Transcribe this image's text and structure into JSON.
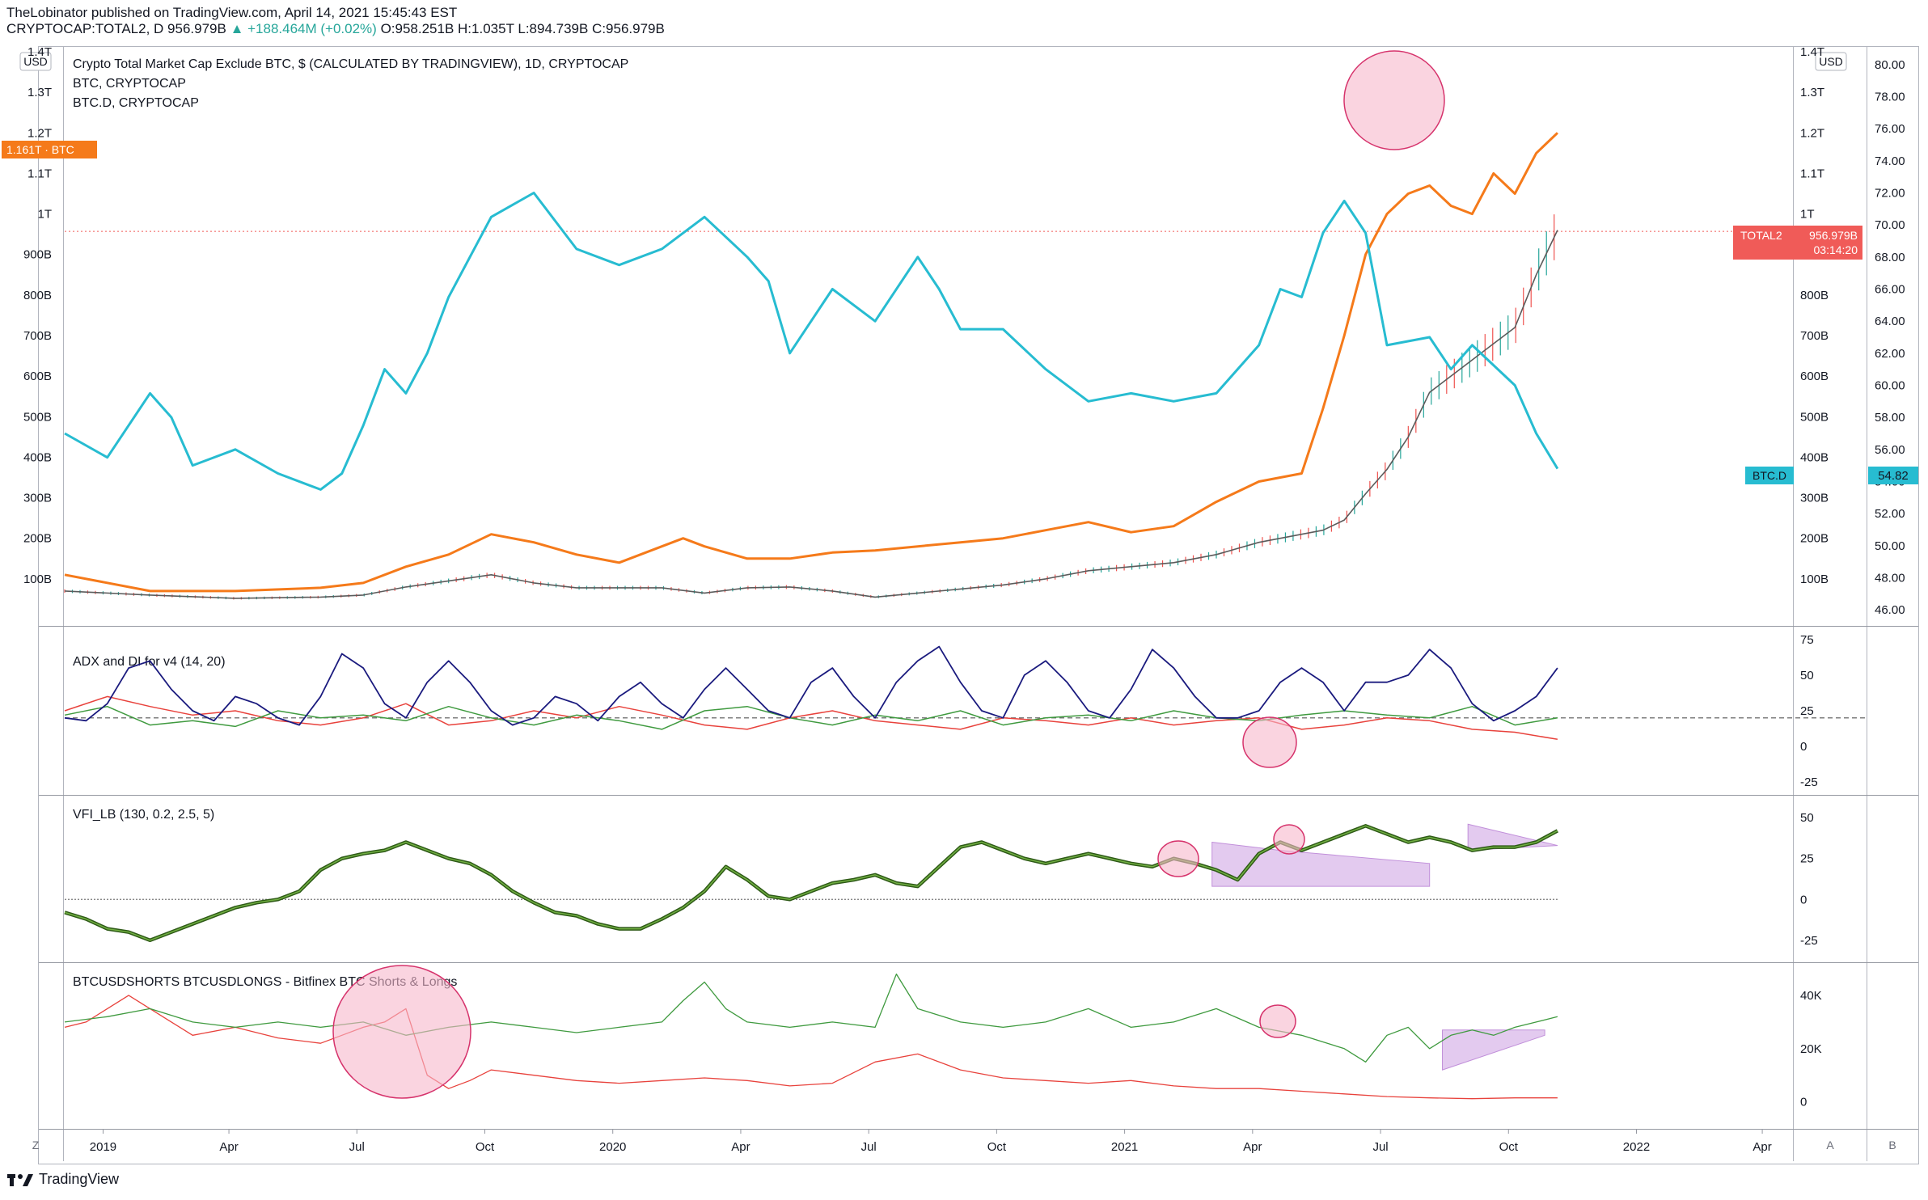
{
  "header": {
    "publish_line": "TheLobinator published on TradingView.com, April 14, 2021 15:45:43 EST",
    "symbol": "CRYPTOCAP:TOTAL2, D",
    "last": "956.979B",
    "change": "▲ +188.464M (+0.02%)",
    "ohlc": "O:958.251B H:1.035T L:894.739B C:956.979B"
  },
  "footer": {
    "brand": "TradingView"
  },
  "colors": {
    "total2": "#5b5b5b",
    "btc": "#f57a1a",
    "btcd": "#27bcd1",
    "adx": "#1a1a7e",
    "di_plus": "#3f9a3f",
    "di_minus": "#e8423c",
    "vfi": "#4b8a2b",
    "shorts": "#e8423c",
    "longs": "#3f9a3f",
    "highlight": "#f7b8cc",
    "triangle": "#d9b8ea"
  },
  "chart_data": [
    {
      "type": "line",
      "title": "Crypto Total Market Cap Exclude BTC, $ (CALCULATED BY TRADINGVIEW), 1D, CRYPTOCAP",
      "legend": [
        "BTC, CRYPTOCAP",
        "BTC.D, CRYPTOCAP"
      ],
      "currency": "USD",
      "yticks_left": [
        "1.4T",
        "1.3T",
        "1.2T",
        "1.1T",
        "1T",
        "900B",
        "800B",
        "700B",
        "600B",
        "500B",
        "400B",
        "300B",
        "200B",
        "100B"
      ],
      "yticks_right_total2": [
        "1.4T",
        "1.3T",
        "1.2T",
        "1.1T",
        "1T",
        "900B",
        "800B",
        "700B",
        "600B",
        "500B",
        "400B",
        "300B",
        "200B",
        "100B"
      ],
      "yticks_btcd": [
        "80.00",
        "78.00",
        "76.00",
        "74.00",
        "72.00",
        "70.00",
        "68.00",
        "66.00",
        "64.00",
        "62.00",
        "60.00",
        "58.00",
        "56.00",
        "54.00",
        "52.00",
        "50.00",
        "48.00",
        "46.00"
      ],
      "ylim_total2": [
        0,
        1400
      ],
      "ylim_btcd": [
        45.4,
        80.8
      ],
      "badges": {
        "btc": "1.161T · BTC",
        "total2_name": "TOTAL2",
        "total2_value": "956.979B",
        "total2_timer": "03:14:20",
        "btcd_name": "BTC.D",
        "btcd_value": "54.82"
      },
      "series": [
        {
          "name": "TOTAL2",
          "x": [
            0.0,
            2.0,
            4.0,
            6.0,
            7.0,
            8.0,
            9.0,
            10.0,
            11.0,
            12.0,
            13.0,
            14.0,
            15.0,
            16.0,
            17.0,
            18.0,
            19.0,
            20.0,
            21.0,
            22.0,
            23.0,
            24.0,
            25.0,
            26.0,
            27.0,
            28.0,
            29.0,
            29.5,
            30.0,
            30.5,
            31.0,
            31.5,
            32.0,
            32.5,
            33.0,
            33.5,
            34.0,
            34.5,
            35.0
          ],
          "values": [
            70,
            60,
            52,
            55,
            60,
            80,
            95,
            110,
            90,
            78,
            78,
            78,
            65,
            78,
            80,
            70,
            55,
            65,
            75,
            85,
            100,
            120,
            130,
            140,
            160,
            190,
            210,
            220,
            245,
            310,
            370,
            450,
            560,
            600,
            640,
            680,
            720,
            850,
            960
          ]
        },
        {
          "name": "BTC",
          "x": [
            0.0,
            2.0,
            4.0,
            6.0,
            7.0,
            8.0,
            9.0,
            10.0,
            11.0,
            12.0,
            13.0,
            14.0,
            14.5,
            15.0,
            16.0,
            17.0,
            18.0,
            19.0,
            20.0,
            21.0,
            22.0,
            23.0,
            24.0,
            25.0,
            26.0,
            27.0,
            28.0,
            29.0,
            29.5,
            30.0,
            30.5,
            31.0,
            31.5,
            32.0,
            32.5,
            33.0,
            33.5,
            34.0,
            34.5,
            35.0
          ],
          "values": [
            110,
            70,
            70,
            78,
            90,
            130,
            160,
            210,
            190,
            160,
            140,
            180,
            200,
            180,
            150,
            150,
            165,
            170,
            180,
            190,
            200,
            220,
            240,
            215,
            230,
            290,
            340,
            360,
            520,
            700,
            900,
            1000,
            1050,
            1070,
            1020,
            1000,
            1100,
            1050,
            1150,
            1200
          ]
        },
        {
          "name": "BTC.D",
          "x": [
            0.0,
            1.0,
            1.5,
            2.0,
            2.5,
            3.0,
            4.0,
            5.0,
            6.0,
            6.5,
            7.0,
            7.5,
            8.0,
            8.5,
            9.0,
            10.0,
            11.0,
            12.0,
            13.0,
            14.0,
            15.0,
            16.0,
            16.5,
            17.0,
            18.0,
            19.0,
            20.0,
            20.5,
            21.0,
            22.0,
            23.0,
            24.0,
            25.0,
            26.0,
            27.0,
            28.0,
            28.5,
            29.0,
            29.5,
            30.0,
            30.5,
            31.0,
            32.0,
            32.5,
            33.0,
            34.0,
            34.5,
            35.0
          ],
          "values": [
            57.0,
            55.5,
            57.5,
            59.5,
            58.0,
            55.0,
            56.0,
            54.5,
            53.5,
            54.5,
            57.5,
            61.0,
            59.5,
            62.0,
            65.5,
            70.5,
            72.0,
            68.5,
            67.5,
            68.5,
            70.5,
            68.0,
            66.5,
            62.0,
            66.0,
            64.0,
            68.0,
            66.0,
            63.5,
            63.5,
            61.0,
            59.0,
            59.5,
            59.0,
            59.5,
            62.5,
            66.0,
            65.5,
            69.5,
            71.5,
            69.5,
            62.5,
            63.0,
            61.0,
            62.5,
            60.0,
            57.0,
            54.8
          ]
        }
      ]
    },
    {
      "type": "line",
      "title": "ADX and DI for v4 (14, 20)",
      "yticks": [
        "75",
        "50",
        "25",
        "0",
        "-25"
      ],
      "ylim": [
        -30,
        80
      ],
      "reference_line": 20,
      "series": [
        {
          "name": "ADX",
          "x": [
            0.0,
            0.5,
            1.0,
            1.5,
            2.0,
            2.5,
            3.0,
            3.5,
            4.0,
            4.5,
            5.0,
            5.5,
            6.0,
            6.5,
            7.0,
            7.5,
            8.0,
            8.5,
            9.0,
            9.5,
            10.0,
            10.5,
            11.0,
            11.5,
            12.0,
            12.5,
            13.0,
            13.5,
            14.0,
            14.5,
            15.0,
            15.5,
            16.0,
            16.5,
            17.0,
            17.5,
            18.0,
            18.5,
            19.0,
            19.5,
            20.0,
            20.5,
            21.0,
            21.5,
            22.0,
            22.5,
            23.0,
            23.5,
            24.0,
            24.5,
            25.0,
            25.5,
            26.0,
            26.5,
            27.0,
            27.5,
            28.0,
            28.5,
            29.0,
            29.5,
            30.0,
            30.5,
            31.0,
            31.5,
            32.0,
            32.5,
            33.0,
            33.5,
            34.0,
            34.5,
            35.0
          ],
          "values": [
            20,
            18,
            30,
            55,
            60,
            40,
            25,
            18,
            35,
            30,
            20,
            15,
            35,
            65,
            55,
            30,
            20,
            45,
            60,
            45,
            25,
            15,
            20,
            35,
            30,
            18,
            35,
            45,
            30,
            20,
            40,
            55,
            40,
            25,
            20,
            45,
            55,
            35,
            20,
            45,
            60,
            70,
            45,
            25,
            20,
            50,
            60,
            45,
            25,
            20,
            40,
            68,
            55,
            35,
            20,
            20,
            25,
            45,
            55,
            45,
            25,
            45,
            45,
            50,
            68,
            55,
            30,
            18,
            25,
            35,
            55
          ]
        },
        {
          "name": "+DI",
          "x": [
            0.0,
            1.0,
            2.0,
            3.0,
            4.0,
            5.0,
            6.0,
            7.0,
            8.0,
            9.0,
            10.0,
            11.0,
            12.0,
            13.0,
            14.0,
            15.0,
            16.0,
            17.0,
            18.0,
            19.0,
            20.0,
            21.0,
            22.0,
            23.0,
            24.0,
            25.0,
            26.0,
            27.0,
            28.0,
            29.0,
            30.0,
            31.0,
            32.0,
            33.0,
            34.0,
            35.0
          ],
          "values": [
            22,
            28,
            15,
            18,
            14,
            25,
            20,
            22,
            18,
            28,
            20,
            15,
            22,
            18,
            12,
            25,
            28,
            20,
            15,
            22,
            18,
            25,
            15,
            20,
            22,
            18,
            25,
            20,
            18,
            22,
            25,
            22,
            20,
            28,
            15,
            20
          ]
        },
        {
          "name": "-DI",
          "x": [
            0.0,
            1.0,
            2.0,
            3.0,
            4.0,
            5.0,
            6.0,
            7.0,
            8.0,
            9.0,
            10.0,
            11.0,
            12.0,
            13.0,
            14.0,
            15.0,
            16.0,
            17.0,
            18.0,
            19.0,
            20.0,
            21.0,
            22.0,
            23.0,
            24.0,
            25.0,
            26.0,
            27.0,
            28.0,
            29.0,
            30.0,
            31.0,
            32.0,
            33.0,
            34.0,
            35.0
          ],
          "values": [
            25,
            35,
            28,
            22,
            25,
            18,
            15,
            20,
            30,
            15,
            18,
            25,
            20,
            28,
            22,
            15,
            12,
            20,
            25,
            18,
            15,
            12,
            20,
            18,
            15,
            20,
            15,
            18,
            20,
            12,
            15,
            20,
            18,
            12,
            10,
            5
          ]
        }
      ]
    },
    {
      "type": "line",
      "title": "VFI_LB (130, 0.2, 2.5, 5)",
      "yticks": [
        "50",
        "25",
        "0",
        "-25"
      ],
      "ylim": [
        -35,
        60
      ],
      "reference_line": 0,
      "series": [
        {
          "name": "VFI",
          "x": [
            0.0,
            0.5,
            1.0,
            1.5,
            2.0,
            2.5,
            3.0,
            3.5,
            4.0,
            4.5,
            5.0,
            5.5,
            6.0,
            6.5,
            7.0,
            7.5,
            8.0,
            8.5,
            9.0,
            9.5,
            10.0,
            10.5,
            11.0,
            11.5,
            12.0,
            12.5,
            13.0,
            13.5,
            14.0,
            14.5,
            15.0,
            15.5,
            16.0,
            16.5,
            17.0,
            17.5,
            18.0,
            18.5,
            19.0,
            19.5,
            20.0,
            20.5,
            21.0,
            21.5,
            22.0,
            22.5,
            23.0,
            23.5,
            24.0,
            24.5,
            25.0,
            25.5,
            26.0,
            26.5,
            27.0,
            27.5,
            28.0,
            28.5,
            29.0,
            29.5,
            30.0,
            30.5,
            31.0,
            31.5,
            32.0,
            32.5,
            33.0,
            33.5,
            34.0,
            34.5,
            35.0
          ],
          "values": [
            -8,
            -12,
            -18,
            -20,
            -25,
            -20,
            -15,
            -10,
            -5,
            -2,
            0,
            5,
            18,
            25,
            28,
            30,
            35,
            30,
            25,
            22,
            15,
            5,
            -2,
            -8,
            -10,
            -15,
            -18,
            -18,
            -12,
            -5,
            5,
            20,
            12,
            2,
            0,
            5,
            10,
            12,
            15,
            10,
            8,
            20,
            32,
            35,
            30,
            25,
            22,
            25,
            28,
            25,
            22,
            20,
            25,
            22,
            18,
            12,
            28,
            35,
            30,
            35,
            40,
            45,
            40,
            35,
            38,
            35,
            30,
            32,
            32,
            35,
            42
          ]
        }
      ]
    },
    {
      "type": "line",
      "title": "BTCUSDSHORTS BTCUSDLONGS - Bitfinex BTC Shorts & Longs",
      "yticks": [
        "40K",
        "20K",
        "0"
      ],
      "ylim": [
        -8000,
        50000
      ],
      "series": [
        {
          "name": "BTCUSDSHORTS",
          "x": [
            0.0,
            0.5,
            1.0,
            1.5,
            2.0,
            2.5,
            3.0,
            4.0,
            5.0,
            6.0,
            6.5,
            7.0,
            7.5,
            8.0,
            8.5,
            9.0,
            9.5,
            10.0,
            11.0,
            12.0,
            13.0,
            14.0,
            15.0,
            16.0,
            17.0,
            18.0,
            19.0,
            20.0,
            21.0,
            22.0,
            23.0,
            24.0,
            25.0,
            26.0,
            27.0,
            28.0,
            29.0,
            30.0,
            31.0,
            32.0,
            33.0,
            34.0,
            35.0
          ],
          "values": [
            28000,
            30000,
            35000,
            40000,
            35000,
            30000,
            25000,
            28000,
            24000,
            22000,
            25000,
            28000,
            30000,
            35000,
            10000,
            5000,
            8000,
            12000,
            10000,
            8000,
            7000,
            8000,
            9000,
            8000,
            6000,
            7000,
            15000,
            18000,
            12000,
            9000,
            8000,
            7000,
            8000,
            6000,
            5000,
            5000,
            4000,
            3000,
            2000,
            1500,
            1200,
            1500,
            1500
          ]
        },
        {
          "name": "BTCUSDLONGS",
          "x": [
            0.0,
            1.0,
            2.0,
            3.0,
            4.0,
            5.0,
            6.0,
            7.0,
            8.0,
            9.0,
            10.0,
            11.0,
            12.0,
            13.0,
            14.0,
            14.5,
            15.0,
            15.5,
            16.0,
            17.0,
            18.0,
            19.0,
            19.5,
            20.0,
            21.0,
            22.0,
            23.0,
            24.0,
            25.0,
            26.0,
            27.0,
            28.0,
            29.0,
            30.0,
            30.5,
            31.0,
            31.5,
            32.0,
            32.5,
            33.0,
            33.5,
            34.0,
            34.5,
            35.0
          ],
          "values": [
            30000,
            32000,
            35000,
            30000,
            28000,
            30000,
            28000,
            30000,
            25000,
            28000,
            30000,
            28000,
            26000,
            28000,
            30000,
            38000,
            45000,
            35000,
            30000,
            28000,
            30000,
            28000,
            48000,
            35000,
            30000,
            28000,
            30000,
            35000,
            28000,
            30000,
            35000,
            28000,
            25000,
            20000,
            15000,
            25000,
            28000,
            20000,
            25000,
            27000,
            25000,
            28000,
            30000,
            32000
          ]
        }
      ]
    }
  ],
  "time_axis": {
    "labels": [
      "2019",
      "Apr",
      "Jul",
      "Oct",
      "2020",
      "Apr",
      "Jul",
      "Oct",
      "2021",
      "Apr",
      "Jul",
      "Oct",
      "2022",
      "Apr"
    ],
    "left_button": "Z",
    "right_buttons": [
      "A",
      "B"
    ]
  }
}
